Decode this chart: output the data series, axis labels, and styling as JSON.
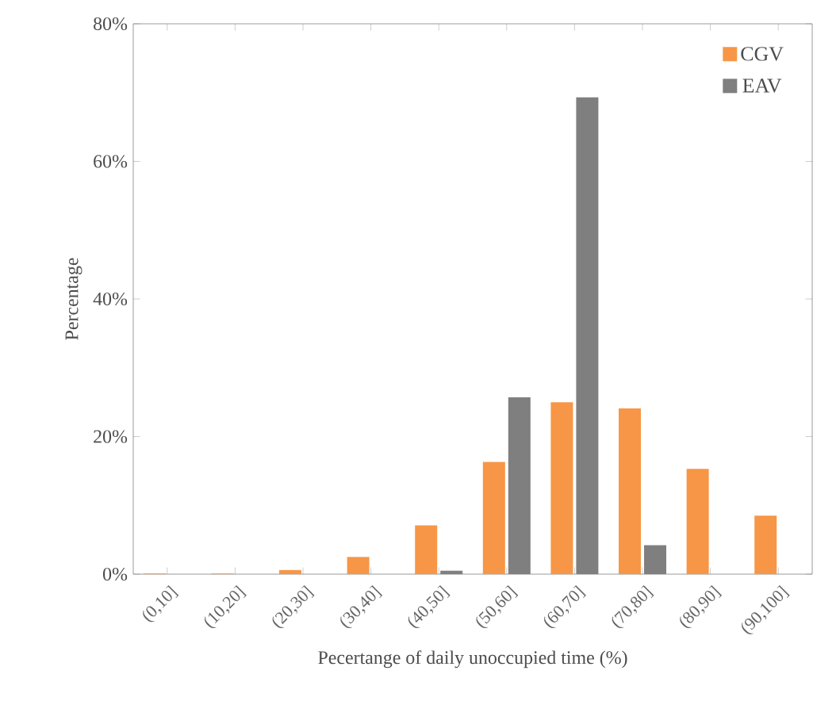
{
  "chart_data": {
    "type": "bar",
    "xlabel": "Pecertange of daily unoccupied time (%)",
    "ylabel": "Percentage",
    "categories": [
      "(0,10]",
      "(10,20]",
      "(20,30]",
      "(30,40]",
      "(40,50]",
      "(50,60]",
      "(60,70]",
      "(70,80]",
      "(80,90]",
      "(90,100]"
    ],
    "series": [
      {
        "name": "CGV",
        "color": "#f79646",
        "values": [
          0.1,
          0.1,
          0.6,
          2.5,
          7.1,
          16.3,
          25.0,
          24.1,
          15.3,
          8.5
        ]
      },
      {
        "name": "EAV",
        "color": "#7f7f7f",
        "values": [
          0,
          0,
          0,
          0,
          0.5,
          25.7,
          69.3,
          4.2,
          0,
          0
        ]
      }
    ],
    "ylim": [
      0,
      80
    ],
    "yticks": [
      {
        "value": 0,
        "label": "0%"
      },
      {
        "value": 20,
        "label": "20%"
      },
      {
        "value": 40,
        "label": "40%"
      },
      {
        "value": 60,
        "label": "60%"
      },
      {
        "value": 80,
        "label": "80%"
      }
    ],
    "grid": false,
    "legend": "top right"
  }
}
